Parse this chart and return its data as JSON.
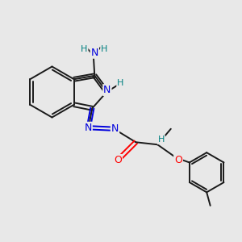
{
  "background_color": "#e8e8e8",
  "bond_color": "#1a1a1a",
  "atom_colors": {
    "N": "#0000dd",
    "O": "#ff0000",
    "H": "#008080",
    "C": "#1a1a1a"
  },
  "figsize": [
    3.0,
    3.0
  ],
  "dpi": 100
}
